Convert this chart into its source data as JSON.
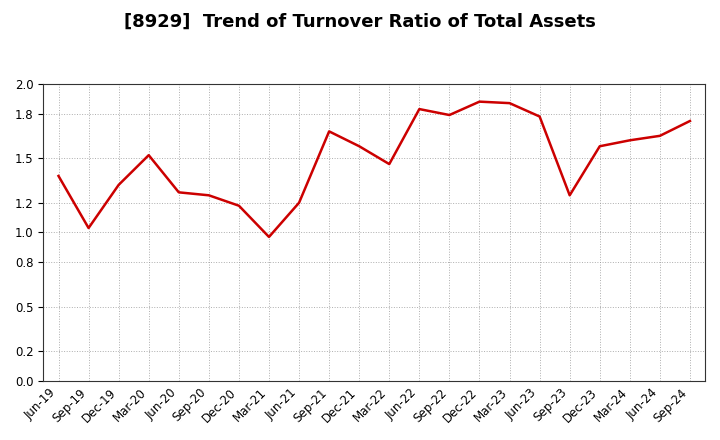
{
  "title": "[8929]  Trend of Turnover Ratio of Total Assets",
  "x_labels": [
    "Jun-19",
    "Sep-19",
    "Dec-19",
    "Mar-20",
    "Jun-20",
    "Sep-20",
    "Dec-20",
    "Mar-21",
    "Jun-21",
    "Sep-21",
    "Dec-21",
    "Mar-22",
    "Jun-22",
    "Sep-22",
    "Dec-22",
    "Mar-23",
    "Jun-23",
    "Sep-23",
    "Dec-23",
    "Mar-24",
    "Jun-24",
    "Sep-24"
  ],
  "y_values": [
    1.38,
    1.03,
    1.32,
    1.52,
    1.27,
    1.25,
    1.18,
    0.97,
    1.2,
    1.68,
    1.58,
    1.46,
    1.83,
    1.79,
    1.88,
    1.87,
    1.78,
    1.25,
    1.58,
    1.62,
    1.65,
    1.75
  ],
  "line_color": "#cc0000",
  "line_width": 1.8,
  "ylim": [
    0.0,
    2.0
  ],
  "yticks": [
    0.0,
    0.2,
    0.5,
    0.8,
    1.0,
    1.2,
    1.5,
    1.8,
    2.0
  ],
  "grid_color": "#999999",
  "background_color": "#ffffff",
  "title_fontsize": 13,
  "tick_fontsize": 8.5,
  "label_rotation": 45
}
